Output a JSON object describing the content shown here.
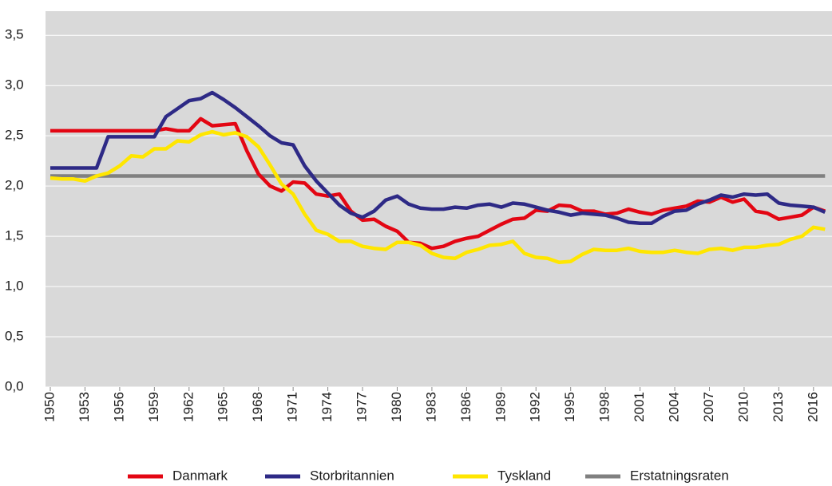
{
  "chart_data": {
    "type": "line",
    "x": [
      1950,
      1951,
      1952,
      1953,
      1954,
      1955,
      1956,
      1957,
      1958,
      1959,
      1960,
      1961,
      1962,
      1963,
      1964,
      1965,
      1966,
      1967,
      1968,
      1969,
      1970,
      1971,
      1972,
      1973,
      1974,
      1975,
      1976,
      1977,
      1978,
      1979,
      1980,
      1981,
      1982,
      1983,
      1984,
      1985,
      1986,
      1987,
      1988,
      1989,
      1990,
      1991,
      1992,
      1993,
      1994,
      1995,
      1996,
      1997,
      1998,
      1999,
      2000,
      2001,
      2002,
      2003,
      2004,
      2005,
      2006,
      2007,
      2008,
      2009,
      2010,
      2011,
      2012,
      2013,
      2014,
      2015,
      2016,
      2017
    ],
    "xlim": [
      1950,
      2017.6
    ],
    "xticks": [
      1950,
      1953,
      1956,
      1959,
      1962,
      1965,
      1968,
      1971,
      1974,
      1977,
      1980,
      1983,
      1986,
      1989,
      1992,
      1995,
      1998,
      2001,
      2004,
      2007,
      2010,
      2013,
      2016
    ],
    "ylim": [
      0,
      3.74
    ],
    "yticks": [
      {
        "value": 0,
        "label": "0,0"
      },
      {
        "value": 0.5,
        "label": "0,5"
      },
      {
        "value": 1,
        "label": "1,0"
      },
      {
        "value": 1.5,
        "label": "1,5"
      },
      {
        "value": 2,
        "label": "2,0"
      },
      {
        "value": 2.5,
        "label": "2,5"
      },
      {
        "value": 3,
        "label": "3,0"
      },
      {
        "value": 3.5,
        "label": "3,5"
      }
    ],
    "grid": true,
    "series": [
      {
        "name": "Danmark",
        "color": "#e30613",
        "values": [
          2.55,
          2.55,
          2.55,
          2.55,
          2.55,
          2.55,
          2.55,
          2.55,
          2.55,
          2.55,
          2.57,
          2.55,
          2.55,
          2.67,
          2.6,
          2.61,
          2.62,
          2.35,
          2.12,
          2.0,
          1.95,
          2.04,
          2.03,
          1.92,
          1.9,
          1.92,
          1.75,
          1.66,
          1.67,
          1.6,
          1.55,
          1.44,
          1.43,
          1.38,
          1.4,
          1.45,
          1.48,
          1.5,
          1.56,
          1.62,
          1.67,
          1.68,
          1.76,
          1.75,
          1.81,
          1.8,
          1.75,
          1.75,
          1.72,
          1.73,
          1.77,
          1.74,
          1.72,
          1.76,
          1.78,
          1.8,
          1.85,
          1.84,
          1.89,
          1.84,
          1.87,
          1.75,
          1.73,
          1.67,
          1.69,
          1.71,
          1.79,
          1.75
        ]
      },
      {
        "name": "Storbritannien",
        "color": "#2e2a86",
        "values": [
          2.18,
          2.18,
          2.18,
          2.18,
          2.18,
          2.49,
          2.49,
          2.49,
          2.49,
          2.49,
          2.69,
          2.77,
          2.85,
          2.87,
          2.93,
          2.86,
          2.78,
          2.69,
          2.6,
          2.5,
          2.43,
          2.41,
          2.2,
          2.05,
          1.93,
          1.81,
          1.73,
          1.69,
          1.75,
          1.86,
          1.9,
          1.82,
          1.78,
          1.77,
          1.77,
          1.79,
          1.78,
          1.81,
          1.82,
          1.79,
          1.83,
          1.82,
          1.79,
          1.76,
          1.74,
          1.71,
          1.73,
          1.72,
          1.71,
          1.68,
          1.64,
          1.63,
          1.63,
          1.7,
          1.75,
          1.76,
          1.82,
          1.86,
          1.91,
          1.89,
          1.92,
          1.91,
          1.92,
          1.83,
          1.81,
          1.8,
          1.79,
          1.74
        ]
      },
      {
        "name": "Tyskland",
        "color": "#ffe600",
        "values": [
          2.08,
          2.07,
          2.07,
          2.05,
          2.1,
          2.13,
          2.2,
          2.3,
          2.29,
          2.37,
          2.37,
          2.45,
          2.44,
          2.51,
          2.54,
          2.51,
          2.53,
          2.49,
          2.39,
          2.21,
          2.02,
          1.92,
          1.72,
          1.56,
          1.52,
          1.45,
          1.45,
          1.4,
          1.38,
          1.37,
          1.44,
          1.44,
          1.41,
          1.33,
          1.29,
          1.28,
          1.34,
          1.37,
          1.41,
          1.42,
          1.45,
          1.33,
          1.29,
          1.28,
          1.24,
          1.25,
          1.32,
          1.37,
          1.36,
          1.36,
          1.38,
          1.35,
          1.34,
          1.34,
          1.36,
          1.34,
          1.33,
          1.37,
          1.38,
          1.36,
          1.39,
          1.39,
          1.41,
          1.42,
          1.47,
          1.5,
          1.59,
          1.57
        ]
      },
      {
        "name": "Erstatningsraten",
        "color": "#808080",
        "values": [
          2.1,
          2.1,
          2.1,
          2.1,
          2.1,
          2.1,
          2.1,
          2.1,
          2.1,
          2.1,
          2.1,
          2.1,
          2.1,
          2.1,
          2.1,
          2.1,
          2.1,
          2.1,
          2.1,
          2.1,
          2.1,
          2.1,
          2.1,
          2.1,
          2.1,
          2.1,
          2.1,
          2.1,
          2.1,
          2.1,
          2.1,
          2.1,
          2.1,
          2.1,
          2.1,
          2.1,
          2.1,
          2.1,
          2.1,
          2.1,
          2.1,
          2.1,
          2.1,
          2.1,
          2.1,
          2.1,
          2.1,
          2.1,
          2.1,
          2.1,
          2.1,
          2.1,
          2.1,
          2.1,
          2.1,
          2.1,
          2.1,
          2.1,
          2.1,
          2.1,
          2.1,
          2.1,
          2.1,
          2.1,
          2.1,
          2.1,
          2.1,
          2.1
        ]
      }
    ]
  }
}
